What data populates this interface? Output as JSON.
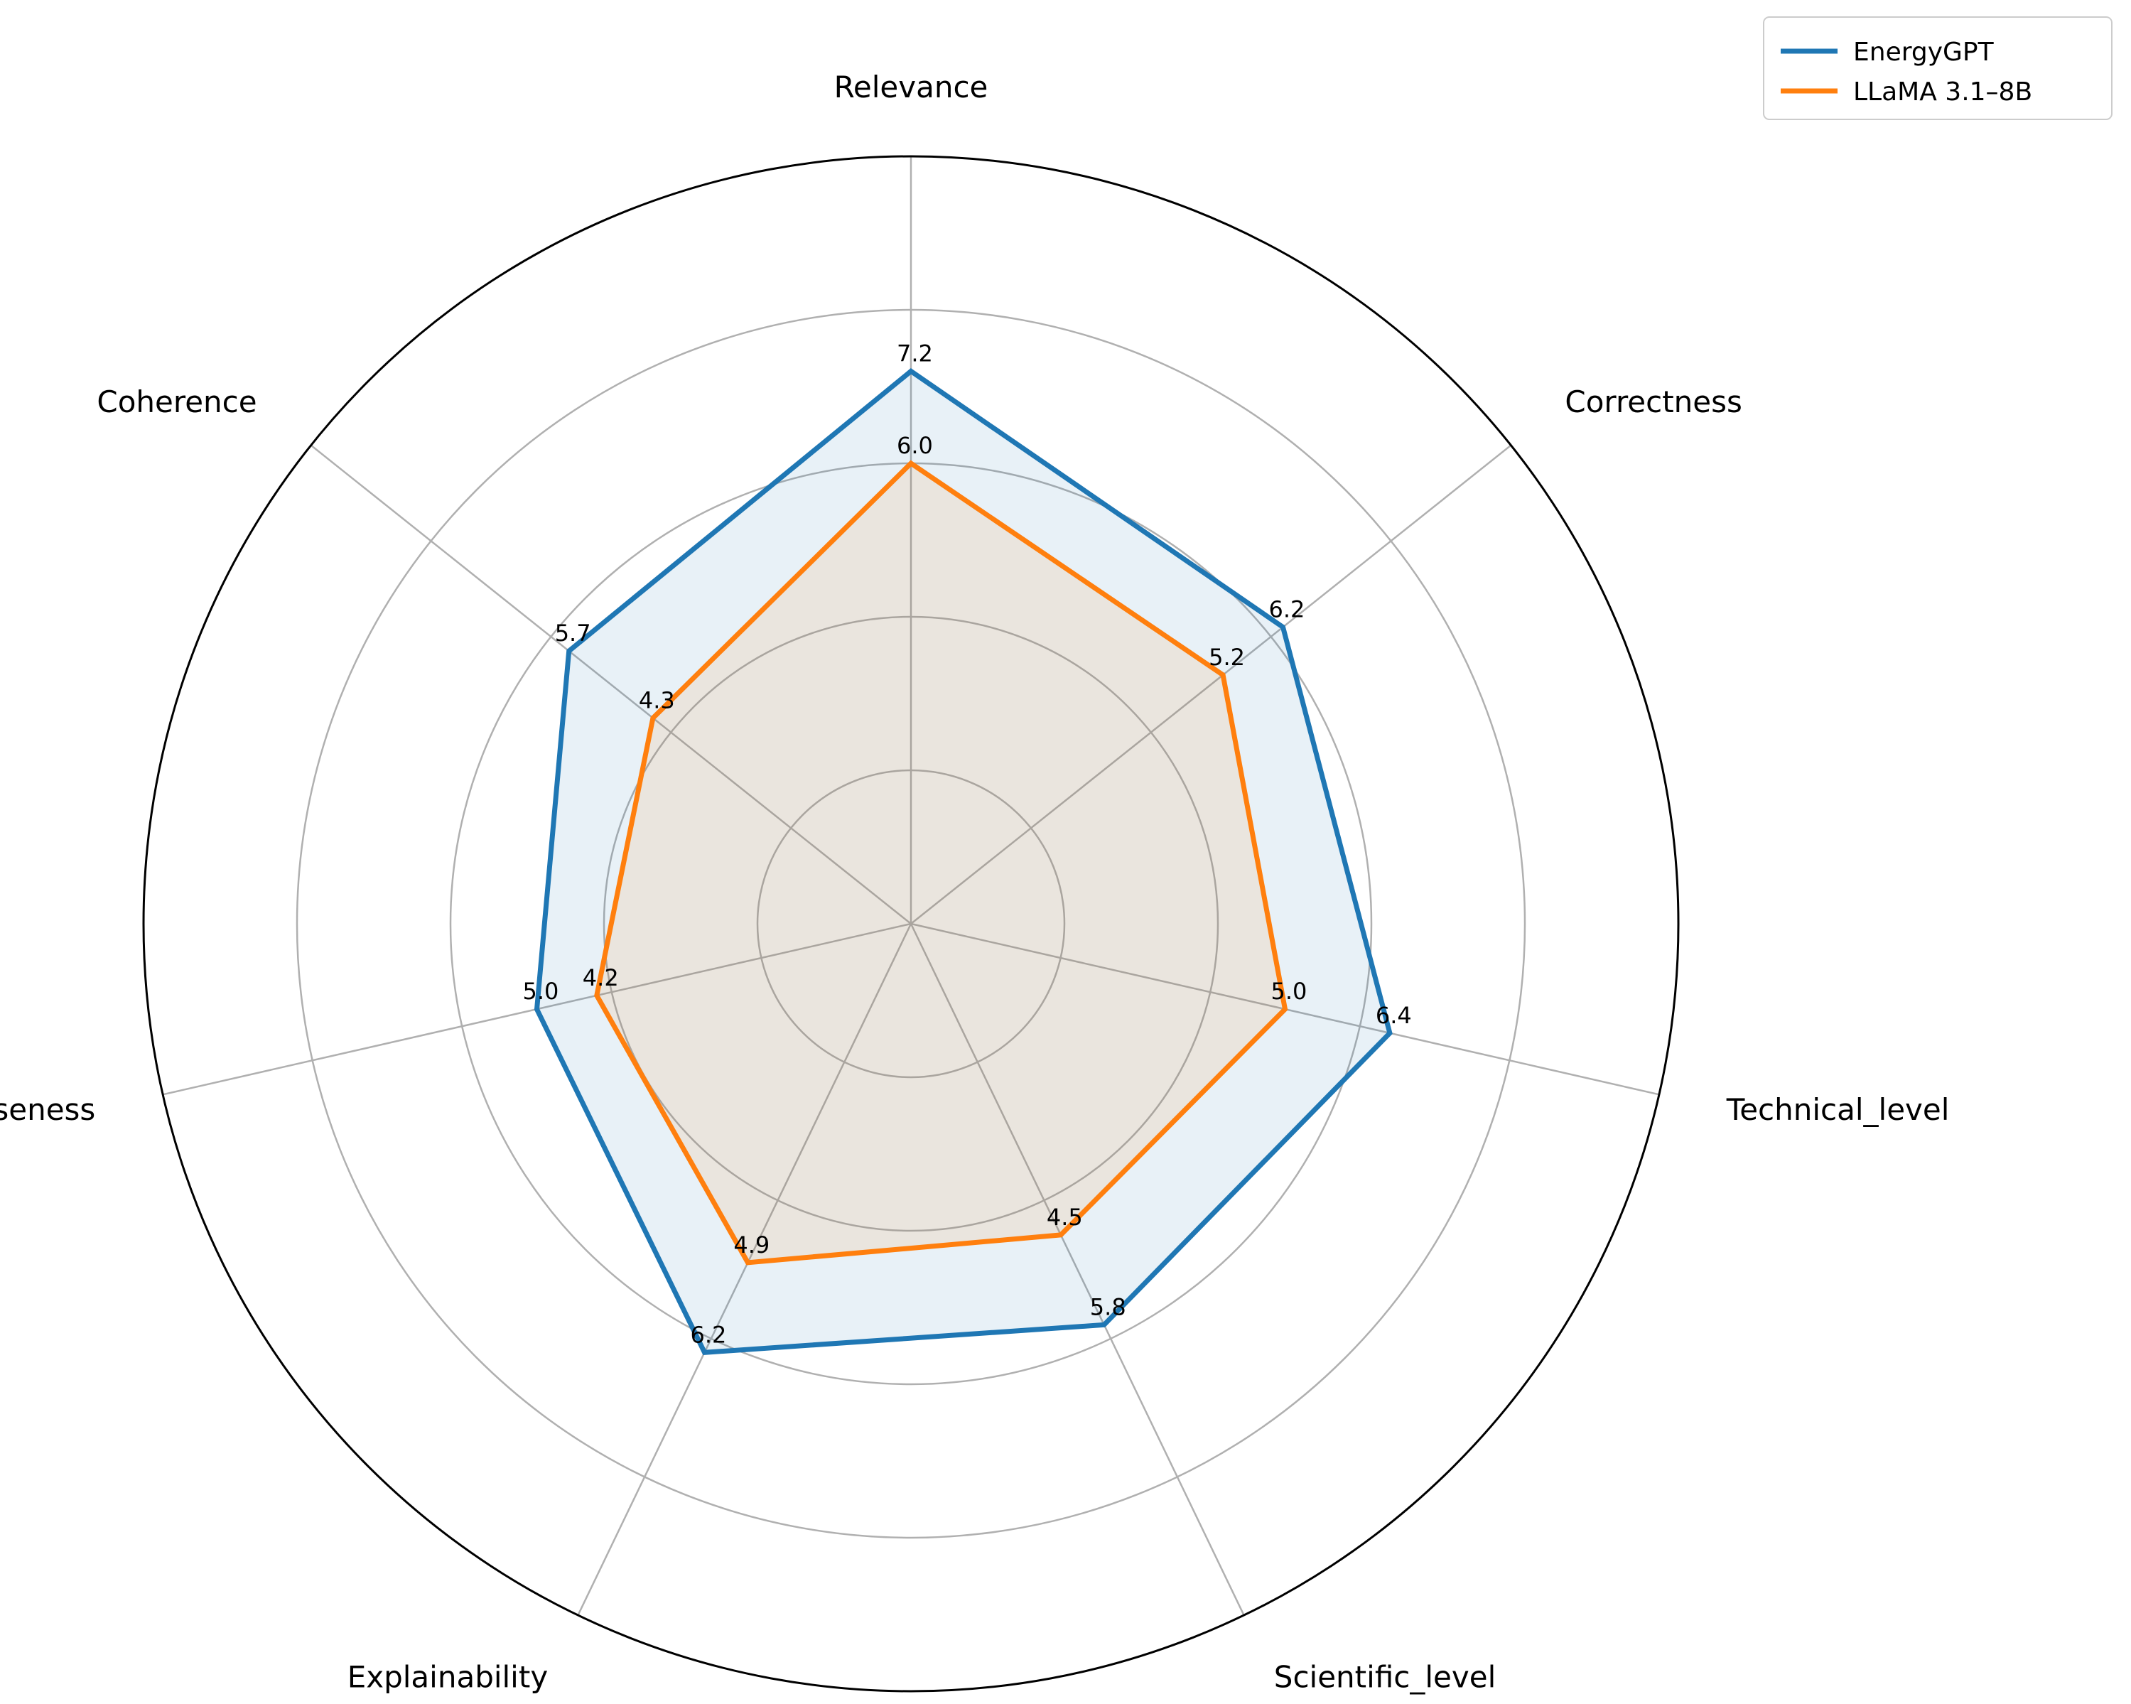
{
  "chart_data": {
    "type": "radar",
    "categories": [
      "Relevance",
      "Correctness",
      "Technical_level",
      "Scientific_level",
      "Explainability",
      "Conciseness",
      "Coherence"
    ],
    "series": [
      {
        "name": "EnergyGPT",
        "values": [
          7.2,
          6.2,
          6.4,
          5.8,
          6.2,
          5.0,
          5.7
        ],
        "value_labels": [
          "7.2",
          "6.2",
          "6.4",
          "5.8",
          "6.2",
          "5.0",
          "5.7"
        ],
        "color": "#1f77b4",
        "fill": "#1f77b4"
      },
      {
        "name": "LLaMA 3.1–8B",
        "values": [
          6.0,
          5.2,
          5.0,
          4.5,
          4.9,
          4.2,
          4.3
        ],
        "value_labels": [
          "6.0",
          "5.2",
          "5.0",
          "4.5",
          "4.9",
          "4.2",
          "4.3"
        ],
        "color": "#ff7f0e",
        "fill": "#ff7f0e"
      }
    ],
    "rlim": [
      0,
      10
    ],
    "grid_rings": [
      2,
      4,
      6,
      8
    ],
    "grid": true,
    "legend_position": "top-right",
    "tick_labels_shown": false
  }
}
